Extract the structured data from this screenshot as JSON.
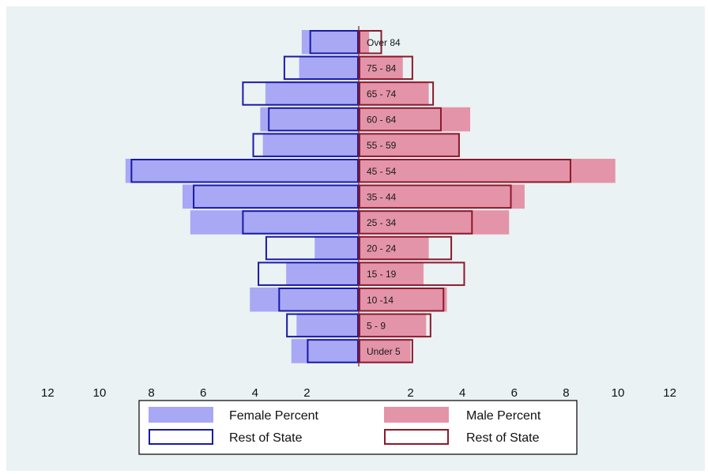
{
  "chart_data": {
    "type": "bar",
    "orientation": "horizontal",
    "layout": "population-pyramid",
    "categories": [
      "Under 5",
      "5 - 9",
      "10 -14",
      "15 - 19",
      "20 - 24",
      "25 - 34",
      "35 - 44",
      "45 - 54",
      "55 - 59",
      "60 - 64",
      "65 - 74",
      "75 - 84",
      "Over 84"
    ],
    "series": [
      {
        "name": "Female Percent",
        "side": "left",
        "style": "filled",
        "color": "#a8a8f5",
        "values": [
          2.6,
          2.4,
          4.2,
          2.8,
          1.7,
          6.5,
          6.8,
          9.0,
          3.7,
          3.8,
          3.6,
          2.3,
          2.2
        ]
      },
      {
        "name": "Rest of State",
        "side": "left",
        "style": "outline",
        "color": "#1a1aa6",
        "values": [
          2.0,
          2.8,
          3.1,
          3.9,
          3.6,
          4.5,
          6.4,
          8.8,
          4.1,
          3.5,
          4.5,
          2.9,
          1.9
        ]
      },
      {
        "name": "Male Percent",
        "side": "right",
        "style": "filled",
        "color": "#e494a8",
        "values": [
          2.0,
          2.6,
          3.4,
          2.5,
          2.7,
          5.8,
          6.4,
          9.9,
          3.9,
          4.3,
          2.7,
          1.7,
          0.4
        ]
      },
      {
        "name": "Rest of State",
        "side": "right",
        "style": "outline",
        "color": "#8b1a2e",
        "values": [
          2.1,
          2.8,
          3.3,
          4.1,
          3.6,
          4.4,
          5.9,
          8.2,
          3.9,
          3.2,
          2.9,
          2.1,
          0.9
        ]
      }
    ],
    "x_tick_labels": [
      "12",
      "10",
      "8",
      "6",
      "4",
      "2",
      "2",
      "4",
      "6",
      "8",
      "10",
      "12"
    ],
    "xlim": [
      -12,
      12
    ],
    "legend_position": "bottom",
    "grid": false
  },
  "legend": {
    "female_percent": "Female Percent",
    "male_percent": "Male Percent",
    "female_rest": "Rest of State",
    "male_rest": "Rest of State"
  }
}
